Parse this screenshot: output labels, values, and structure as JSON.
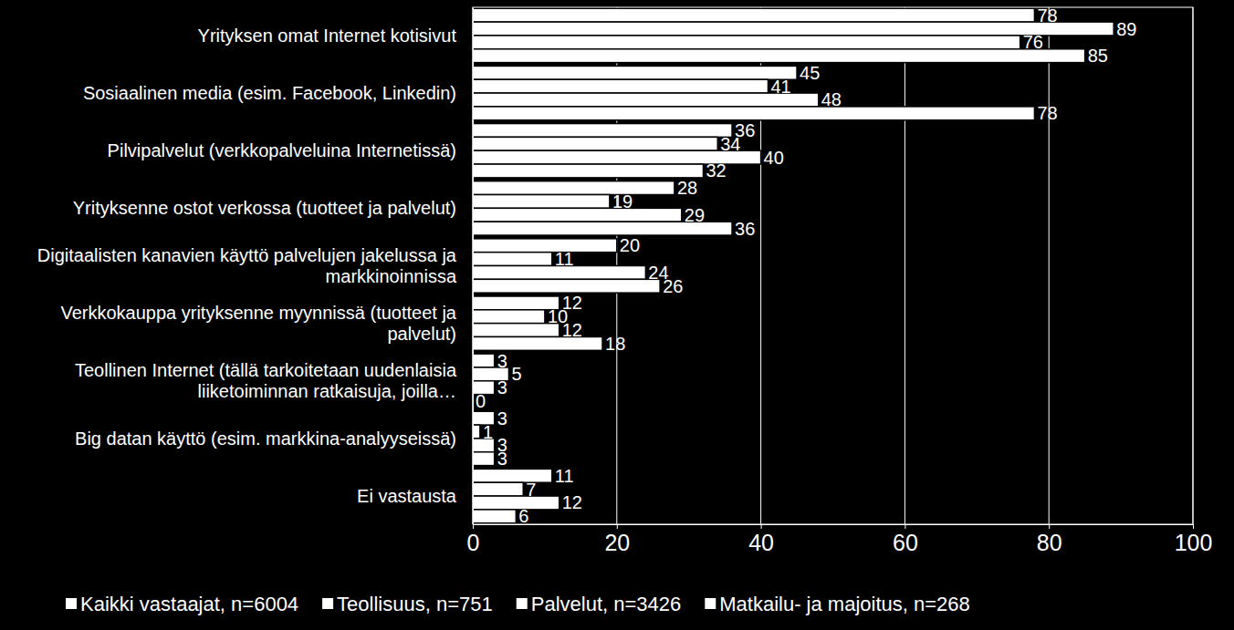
{
  "chart_data": {
    "type": "bar",
    "orientation": "horizontal",
    "data_labels": true,
    "grid": true,
    "legend": "bottom",
    "categories": [
      "Yrityksen omat Internet kotisivut",
      "Sosiaalinen media (esim. Facebook, Linkedin)",
      "Pilvipalvelut  (verkkopalveluina Internetissä)",
      "Yrityksenne ostot verkossa (tuotteet ja palvelut)",
      "Digitaalisten kanavien käyttö palvelujen jakelussa ja markkinoinnissa",
      "Verkkokauppa yrityksenne myynnissä (tuotteet ja palvelut)",
      "Teollinen Internet (tällä tarkoitetaan uudenlaisia liiketoiminnan ratkaisuja, joilla…",
      "Big datan käyttö (esim. markkina-analyyseissä)",
      "Ei vastausta"
    ],
    "series": [
      {
        "name": "Kaikki vastaajat, n=6004",
        "color": "#ffffff",
        "values": [
          78,
          45,
          36,
          28,
          20,
          12,
          3,
          3,
          11
        ]
      },
      {
        "name": "Teollisuus, n=751",
        "color": "#ffffff",
        "values": [
          89,
          41,
          34,
          19,
          11,
          10,
          5,
          1,
          7
        ]
      },
      {
        "name": "Palvelut, n=3426",
        "color": "#ffffff",
        "values": [
          76,
          48,
          40,
          29,
          24,
          12,
          3,
          3,
          12
        ]
      },
      {
        "name": "Matkailu- ja majoitus, n=268",
        "color": "#ffffff",
        "values": [
          85,
          78,
          32,
          36,
          26,
          18,
          0,
          3,
          6
        ]
      }
    ],
    "xlim": [
      0,
      100
    ],
    "xticks": [
      0,
      20,
      40,
      60,
      80,
      100
    ]
  }
}
